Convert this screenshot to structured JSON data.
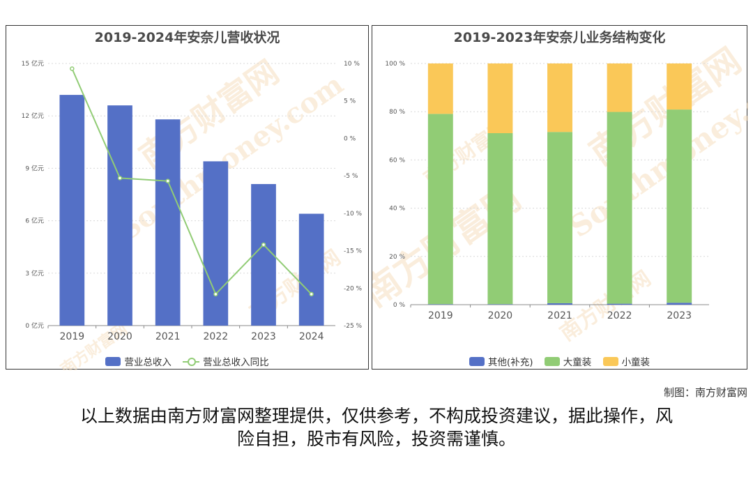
{
  "credit": "制图：南方财富网",
  "disclaimer": {
    "line1": "以上数据由南方财富网整理提供，仅供参考，不构成投资建议，据此操作，风",
    "line2": "险自担，股市有风险，投资需谨慎。"
  },
  "colors": {
    "blue": "#5470c6",
    "green": "#91cc75",
    "yellow": "#fac858",
    "axis_text": "#555555",
    "grid": "#d8d8d8",
    "watermark": "#f6dfbf"
  },
  "watermark": {
    "text_cn": "南方财富网",
    "text_en": "Southmoney.com"
  },
  "chart_data": [
    {
      "type": "bar",
      "title": "2019-2024年安奈儿营收状况",
      "categories": [
        "2019",
        "2020",
        "2021",
        "2022",
        "2023",
        "2024"
      ],
      "series": [
        {
          "name": "营业总收入",
          "type": "bar",
          "axis": "left",
          "values": [
            13.2,
            12.6,
            11.8,
            9.4,
            8.1,
            6.4
          ]
        },
        {
          "name": "营业总收入同比",
          "type": "line",
          "axis": "right",
          "values": [
            9.3,
            -5.3,
            -5.7,
            -20.8,
            -14.2,
            -20.8
          ]
        }
      ],
      "y_left": {
        "ylim": [
          0,
          15
        ],
        "ticks": [
          0,
          3,
          6,
          9,
          12,
          15
        ],
        "tick_labels": [
          "0 亿元",
          "3 亿元",
          "6 亿元",
          "9 亿元",
          "12 亿元",
          "15 亿元"
        ]
      },
      "y_right": {
        "ylim": [
          -25,
          10
        ],
        "ticks": [
          -25,
          -20,
          -15,
          -10,
          -5,
          0,
          5,
          10
        ],
        "tick_labels": [
          "-25 %",
          "-20 %",
          "-15 %",
          "-10 %",
          "-5 %",
          "0 %",
          "5 %",
          "10 %"
        ]
      },
      "grid": true,
      "legend_position": "bottom"
    },
    {
      "type": "bar",
      "stacked": true,
      "title": "2019-2023年安奈儿业务结构变化",
      "categories": [
        "2019",
        "2020",
        "2021",
        "2022",
        "2023"
      ],
      "series": [
        {
          "name": "其他(补充)",
          "values": [
            0.2,
            0.2,
            0.6,
            0.4,
            0.8
          ]
        },
        {
          "name": "大童装",
          "values": [
            78.9,
            70.9,
            71.0,
            79.5,
            80.1
          ]
        },
        {
          "name": "小童装",
          "values": [
            20.9,
            28.9,
            28.4,
            20.1,
            19.1
          ]
        }
      ],
      "ylim": [
        0,
        100
      ],
      "ticks": [
        0,
        20,
        40,
        60,
        80,
        100
      ],
      "tick_labels": [
        "0 %",
        "20 %",
        "40 %",
        "60 %",
        "80 %",
        "100 %"
      ],
      "grid": true,
      "legend_position": "bottom"
    }
  ]
}
